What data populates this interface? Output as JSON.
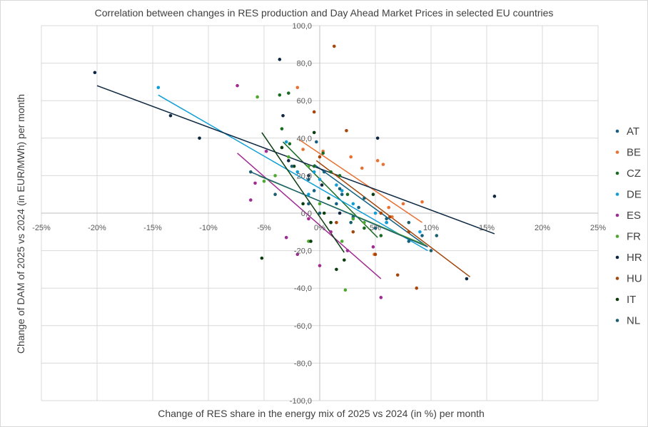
{
  "chart_data": {
    "type": "scatter",
    "title": "Correlation between changes in RES production and Day Ahead Market Prices in selected EU countries",
    "xlabel": "Change of RES share in the energy mix of 2025 vs 2024 (in %) per month",
    "ylabel": "Change of DAM of 2025 vs 2024 (in EUR/MWh) per month",
    "xlim": [
      -0.25,
      0.25
    ],
    "ylim": [
      -100,
      100
    ],
    "x_ticks": [
      -0.25,
      -0.2,
      -0.15,
      -0.1,
      -0.05,
      0,
      0.05,
      0.1,
      0.15,
      0.2,
      0.25
    ],
    "x_tick_labels": [
      "-25%",
      "-20%",
      "-15%",
      "-10%",
      "-5%",
      "0%",
      "5%",
      "10%",
      "15%",
      "20%",
      "25%"
    ],
    "y_ticks": [
      -100,
      -80,
      -60,
      -40,
      -20,
      0,
      20,
      40,
      60,
      80,
      100
    ],
    "y_tick_labels": [
      "-100,0",
      "-80,0",
      "-60,0",
      "-40,0",
      "-20,0",
      "0,0",
      "20,0",
      "40,0",
      "60,0",
      "80,0",
      "100,0"
    ],
    "grid": true,
    "legend_position": "right",
    "series": [
      {
        "name": "AT",
        "color": "#156082",
        "points": [
          [
            -0.003,
            38
          ],
          [
            0.004,
            22
          ],
          [
            0.015,
            5
          ],
          [
            0.03,
            -2
          ],
          [
            0.05,
            -8
          ],
          [
            0.08,
            -15
          ],
          [
            0.092,
            -12
          ],
          [
            -0.005,
            12
          ],
          [
            0.02,
            10
          ],
          [
            0.035,
            3
          ],
          [
            0.06,
            -5
          ],
          [
            -0.01,
            18
          ]
        ],
        "trend": [
          [
            -0.005,
            26
          ],
          [
            0.097,
            -18
          ]
        ]
      },
      {
        "name": "BE",
        "color": "#e97132",
        "points": [
          [
            -0.02,
            67
          ],
          [
            -0.015,
            34
          ],
          [
            0.003,
            33
          ],
          [
            0.028,
            30
          ],
          [
            0.038,
            24
          ],
          [
            0.052,
            28
          ],
          [
            0.057,
            26
          ],
          [
            0.062,
            3
          ],
          [
            0.065,
            -2
          ],
          [
            0.075,
            5
          ],
          [
            0.092,
            6
          ],
          [
            0.049,
            -22
          ]
        ],
        "trend": [
          [
            -0.018,
            39
          ],
          [
            0.092,
            -5
          ]
        ]
      },
      {
        "name": "CZ",
        "color": "#196b24",
        "points": [
          [
            -0.036,
            63
          ],
          [
            -0.028,
            64
          ],
          [
            -0.034,
            45
          ],
          [
            -0.027,
            37
          ],
          [
            -0.005,
            25
          ],
          [
            0.003,
            32
          ],
          [
            0.01,
            22
          ],
          [
            0.018,
            20
          ],
          [
            0.025,
            10
          ],
          [
            0.03,
            -3
          ],
          [
            0.04,
            -8
          ],
          [
            0.055,
            -12
          ]
        ],
        "trend": [
          [
            -0.033,
            38
          ],
          [
            0.052,
            -13
          ]
        ]
      },
      {
        "name": "DE",
        "color": "#0f9ed5",
        "points": [
          [
            -0.145,
            67
          ],
          [
            -0.03,
            38
          ],
          [
            -0.02,
            22
          ],
          [
            -0.005,
            22
          ],
          [
            0.0,
            18
          ],
          [
            0.015,
            15
          ],
          [
            0.02,
            12
          ],
          [
            0.05,
            0
          ],
          [
            0.09,
            -10
          ],
          [
            -0.01,
            10
          ],
          [
            0.03,
            5
          ],
          [
            0.06,
            -5
          ]
        ],
        "trend": [
          [
            -0.145,
            63
          ],
          [
            0.097,
            -20
          ]
        ]
      },
      {
        "name": "ES",
        "color": "#a02b93",
        "points": [
          [
            -0.074,
            68
          ],
          [
            -0.062,
            7
          ],
          [
            -0.058,
            16
          ],
          [
            -0.048,
            33
          ],
          [
            -0.03,
            -13
          ],
          [
            -0.02,
            -22
          ],
          [
            -0.01,
            -3
          ],
          [
            0.0,
            -28
          ],
          [
            0.01,
            -10
          ],
          [
            0.025,
            -20
          ],
          [
            0.048,
            -18
          ],
          [
            0.055,
            -45
          ]
        ],
        "trend": [
          [
            -0.074,
            32
          ],
          [
            0.055,
            -35
          ]
        ]
      },
      {
        "name": "FR",
        "color": "#4ea72e",
        "points": [
          [
            -0.056,
            62
          ],
          [
            -0.05,
            17
          ],
          [
            -0.04,
            20
          ],
          [
            -0.028,
            30
          ],
          [
            -0.01,
            25
          ],
          [
            0.0,
            5
          ],
          [
            0.01,
            -5
          ],
          [
            0.02,
            -15
          ],
          [
            0.023,
            -41
          ],
          [
            0.03,
            -3
          ],
          [
            0.04,
            -5
          ],
          [
            -0.01,
            -15
          ]
        ],
        "trend": [
          [
            -0.055,
            20
          ],
          [
            0.095,
            -17
          ]
        ]
      },
      {
        "name": "HR",
        "color": "#0e2841",
        "points": [
          [
            -0.202,
            75
          ],
          [
            -0.134,
            52
          ],
          [
            -0.108,
            40
          ],
          [
            -0.036,
            82
          ],
          [
            -0.033,
            52
          ],
          [
            -0.028,
            28
          ],
          [
            -0.01,
            20
          ],
          [
            0.002,
            15
          ],
          [
            0.018,
            0
          ],
          [
            0.052,
            40
          ],
          [
            0.132,
            -35
          ],
          [
            0.157,
            9
          ]
        ],
        "trend": [
          [
            -0.2,
            68
          ],
          [
            0.157,
            -11
          ]
        ]
      },
      {
        "name": "HU",
        "color": "#a5460b",
        "points": [
          [
            0.013,
            89
          ],
          [
            -0.005,
            54
          ],
          [
            0.024,
            44
          ],
          [
            0.0,
            30
          ],
          [
            0.015,
            -5
          ],
          [
            0.03,
            -10
          ],
          [
            0.05,
            -22
          ],
          [
            0.055,
            0
          ],
          [
            0.063,
            -2
          ],
          [
            0.07,
            -33
          ],
          [
            0.08,
            -10
          ],
          [
            0.087,
            -40
          ]
        ],
        "trend": [
          [
            -0.003,
            28
          ],
          [
            0.135,
            -34
          ]
        ]
      },
      {
        "name": "IT",
        "color": "#0b3d0f",
        "points": [
          [
            -0.052,
            -24
          ],
          [
            -0.034,
            35
          ],
          [
            -0.023,
            25
          ],
          [
            -0.015,
            5
          ],
          [
            -0.008,
            -15
          ],
          [
            -0.005,
            43
          ],
          [
            0.004,
            0
          ],
          [
            0.008,
            8
          ],
          [
            0.01,
            -5
          ],
          [
            0.015,
            -30
          ],
          [
            0.022,
            -25
          ],
          [
            0.048,
            10
          ]
        ],
        "trend": [
          [
            -0.052,
            43
          ],
          [
            0.022,
            -21
          ]
        ]
      },
      {
        "name": "NL",
        "color": "#1b5e70",
        "points": [
          [
            -0.062,
            22
          ],
          [
            -0.04,
            10
          ],
          [
            -0.025,
            25
          ],
          [
            -0.01,
            5
          ],
          [
            0.0,
            0
          ],
          [
            0.018,
            13
          ],
          [
            0.028,
            -5
          ],
          [
            0.04,
            8
          ],
          [
            0.06,
            -3
          ],
          [
            0.08,
            -5
          ],
          [
            0.1,
            -20
          ],
          [
            0.105,
            -12
          ]
        ],
        "trend": [
          [
            -0.062,
            22
          ],
          [
            0.097,
            -18
          ]
        ]
      }
    ]
  }
}
